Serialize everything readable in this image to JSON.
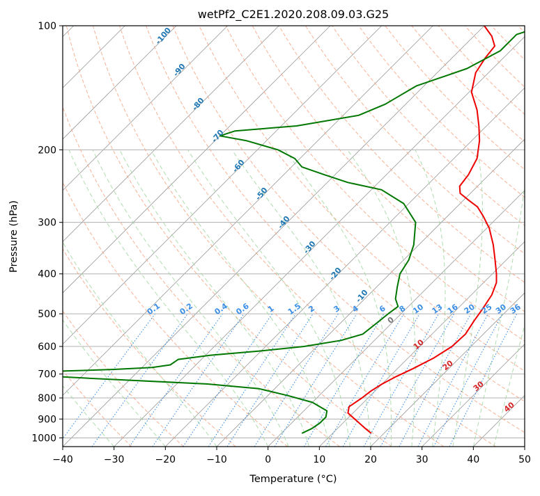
{
  "chart_data": {
    "type": "line",
    "title": "wetPf2_C2E1.2020.208.09.03.G25",
    "xlabel": "Temperature (°C)",
    "ylabel": "Pressure (hPa)",
    "xlim": [
      -40,
      50
    ],
    "ylim": [
      1050,
      100
    ],
    "y_scale": "log",
    "grid": true,
    "x_ticks": [
      -40,
      -30,
      -20,
      -10,
      0,
      10,
      20,
      30,
      40,
      50
    ],
    "x_tick_labels": [
      "−40",
      "−30",
      "−20",
      "−10",
      "0",
      "10",
      "20",
      "30",
      "40",
      "50"
    ],
    "y_ticks": [
      100,
      200,
      300,
      400,
      500,
      600,
      700,
      800,
      900,
      1000
    ],
    "y_tick_labels": [
      "100",
      "200",
      "300",
      "400",
      "500",
      "600",
      "700",
      "800",
      "900",
      "1000"
    ],
    "skew": 1.0,
    "series": [
      {
        "color": "#ee0000",
        "points": [
          {
            "p": 975,
            "t": 17.5
          },
          {
            "p": 950,
            "t": 15.5
          },
          {
            "p": 900,
            "t": 11.5
          },
          {
            "p": 870,
            "t": 9.0
          },
          {
            "p": 840,
            "t": 8.0
          },
          {
            "p": 800,
            "t": 8.8
          },
          {
            "p": 770,
            "t": 9.2
          },
          {
            "p": 740,
            "t": 10.0
          },
          {
            "p": 710,
            "t": 11.3
          },
          {
            "p": 680,
            "t": 13.0
          },
          {
            "p": 640,
            "t": 15.0
          },
          {
            "p": 600,
            "t": 16.3
          },
          {
            "p": 560,
            "t": 16.5
          },
          {
            "p": 520,
            "t": 15.6
          },
          {
            "p": 490,
            "t": 15.0
          },
          {
            "p": 450,
            "t": 14.0
          },
          {
            "p": 420,
            "t": 12.5
          },
          {
            "p": 400,
            "t": 10.8
          },
          {
            "p": 370,
            "t": 7.8
          },
          {
            "p": 340,
            "t": 4.5
          },
          {
            "p": 310,
            "t": 0.5
          },
          {
            "p": 290,
            "t": -3.0
          },
          {
            "p": 275,
            "t": -6.0
          },
          {
            "p": 265,
            "t": -9.0
          },
          {
            "p": 255,
            "t": -12.0
          },
          {
            "p": 245,
            "t": -13.5
          },
          {
            "p": 230,
            "t": -14.0
          },
          {
            "p": 210,
            "t": -15.5
          },
          {
            "p": 190,
            "t": -18.5
          },
          {
            "p": 175,
            "t": -21.5
          },
          {
            "p": 160,
            "t": -25.0
          },
          {
            "p": 145,
            "t": -29.5
          },
          {
            "p": 130,
            "t": -32.5
          },
          {
            "p": 120,
            "t": -33.5
          },
          {
            "p": 112,
            "t": -34.0
          },
          {
            "p": 106,
            "t": -36.5
          },
          {
            "p": 100,
            "t": -40.0
          }
        ]
      },
      {
        "color": "#007700",
        "points": [
          {
            "p": 975,
            "t": 4.0
          },
          {
            "p": 950,
            "t": 5.0
          },
          {
            "p": 920,
            "t": 5.5
          },
          {
            "p": 890,
            "t": 5.5
          },
          {
            "p": 860,
            "t": 4.5
          },
          {
            "p": 820,
            "t": 0.0
          },
          {
            "p": 790,
            "t": -6.0
          },
          {
            "p": 760,
            "t": -13.0
          },
          {
            "p": 740,
            "t": -24.0
          },
          {
            "p": 720,
            "t": -45.0
          },
          {
            "p": 710,
            "t": -55.0
          },
          {
            "p": 700,
            "t": -62.0
          },
          {
            "p": 690,
            "t": -57.0
          },
          {
            "p": 682,
            "t": -45.0
          },
          {
            "p": 675,
            "t": -38.0
          },
          {
            "p": 665,
            "t": -35.0
          },
          {
            "p": 645,
            "t": -34.5
          },
          {
            "p": 630,
            "t": -29.0
          },
          {
            "p": 615,
            "t": -20.0
          },
          {
            "p": 600,
            "t": -12.5
          },
          {
            "p": 580,
            "t": -6.5
          },
          {
            "p": 560,
            "t": -3.5
          },
          {
            "p": 530,
            "t": -3.0
          },
          {
            "p": 500,
            "t": -2.5
          },
          {
            "p": 480,
            "t": -2.0
          },
          {
            "p": 460,
            "t": -4.0
          },
          {
            "p": 430,
            "t": -6.0
          },
          {
            "p": 400,
            "t": -8.0
          },
          {
            "p": 370,
            "t": -9.0
          },
          {
            "p": 340,
            "t": -11.0
          },
          {
            "p": 300,
            "t": -15.0
          },
          {
            "p": 270,
            "t": -21.0
          },
          {
            "p": 250,
            "t": -28.0
          },
          {
            "p": 240,
            "t": -36.0
          },
          {
            "p": 230,
            "t": -42.0
          },
          {
            "p": 220,
            "t": -48.0
          },
          {
            "p": 210,
            "t": -51.0
          },
          {
            "p": 200,
            "t": -56.0
          },
          {
            "p": 190,
            "t": -64.0
          },
          {
            "p": 185,
            "t": -70.0
          },
          {
            "p": 180,
            "t": -68.0
          },
          {
            "p": 175,
            "t": -57.0
          },
          {
            "p": 165,
            "t": -47.0
          },
          {
            "p": 155,
            "t": -44.0
          },
          {
            "p": 140,
            "t": -41.5
          },
          {
            "p": 127,
            "t": -35.0
          },
          {
            "p": 115,
            "t": -32.0
          },
          {
            "p": 105,
            "t": -32.0
          },
          {
            "p": 100,
            "t": -28.5
          }
        ]
      }
    ],
    "dry_adiabat_labels": [
      "-100",
      "-90",
      "-80",
      "-70",
      "-60",
      "-50",
      "-40",
      "-30",
      "-20",
      "-10"
    ],
    "mixing_ratio_labels": [
      "0.1",
      "0.2",
      "0.4",
      "0.6",
      "1",
      "1.5",
      "2",
      "3",
      "4",
      "6",
      "8",
      "10",
      "13",
      "16",
      "20",
      "25",
      "30",
      "36"
    ],
    "moist_adiabat_labels": [
      "0",
      "10",
      "20",
      "30",
      "40"
    ],
    "colors": {
      "temperature": "#ee0000",
      "dewpoint": "#007700",
      "isotherm": "#999999",
      "dry_adiabat": "#f4a582",
      "moist_adiabat": "#a6d8a6",
      "mixing_ratio": "#3a8ee6",
      "dry_label": "#1f77b4",
      "moist_label": "#d62728"
    }
  }
}
